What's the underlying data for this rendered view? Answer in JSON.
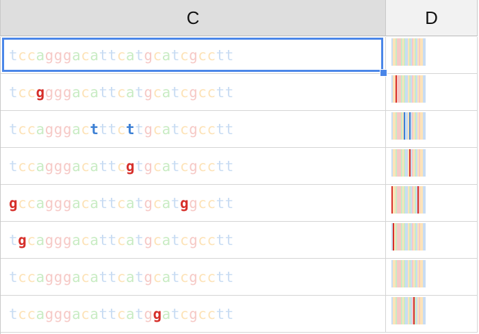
{
  "columns": [
    {
      "id": "c",
      "label": "C"
    },
    {
      "id": "d",
      "label": "D"
    }
  ],
  "colors": {
    "a": "#c9ecc4",
    "c": "#fde3b8",
    "g": "#f6c9c6",
    "t": "#c8dcf3",
    "mut_g": "#d62f2a",
    "mut_t": "#3b7fd4",
    "selection": "#4a86e8"
  },
  "rows": [
    {
      "sequence": "tccagggacattcatgcatcgcctt",
      "mutations": []
    },
    {
      "sequence": "tccggggacattcatgcatcgcctt",
      "mutations": [
        3
      ]
    },
    {
      "sequence": "tccagggactttcttgcatcgcctt",
      "mutations": [
        9,
        13
      ]
    },
    {
      "sequence": "tccagggacattcgtgcatcgcctt",
      "mutations": [
        13
      ]
    },
    {
      "sequence": "gccagggacattcatgcatggcctt",
      "mutations": [
        0,
        19
      ]
    },
    {
      "sequence": "tgcagggacattcatgcatcgcctt",
      "mutations": [
        1
      ]
    },
    {
      "sequence": "tccagggacattcatgcatcgcctt",
      "mutations": []
    },
    {
      "sequence": "tccagggacattcatggatcgcctt",
      "mutations": [
        16
      ]
    }
  ],
  "selected_cell": "C1"
}
